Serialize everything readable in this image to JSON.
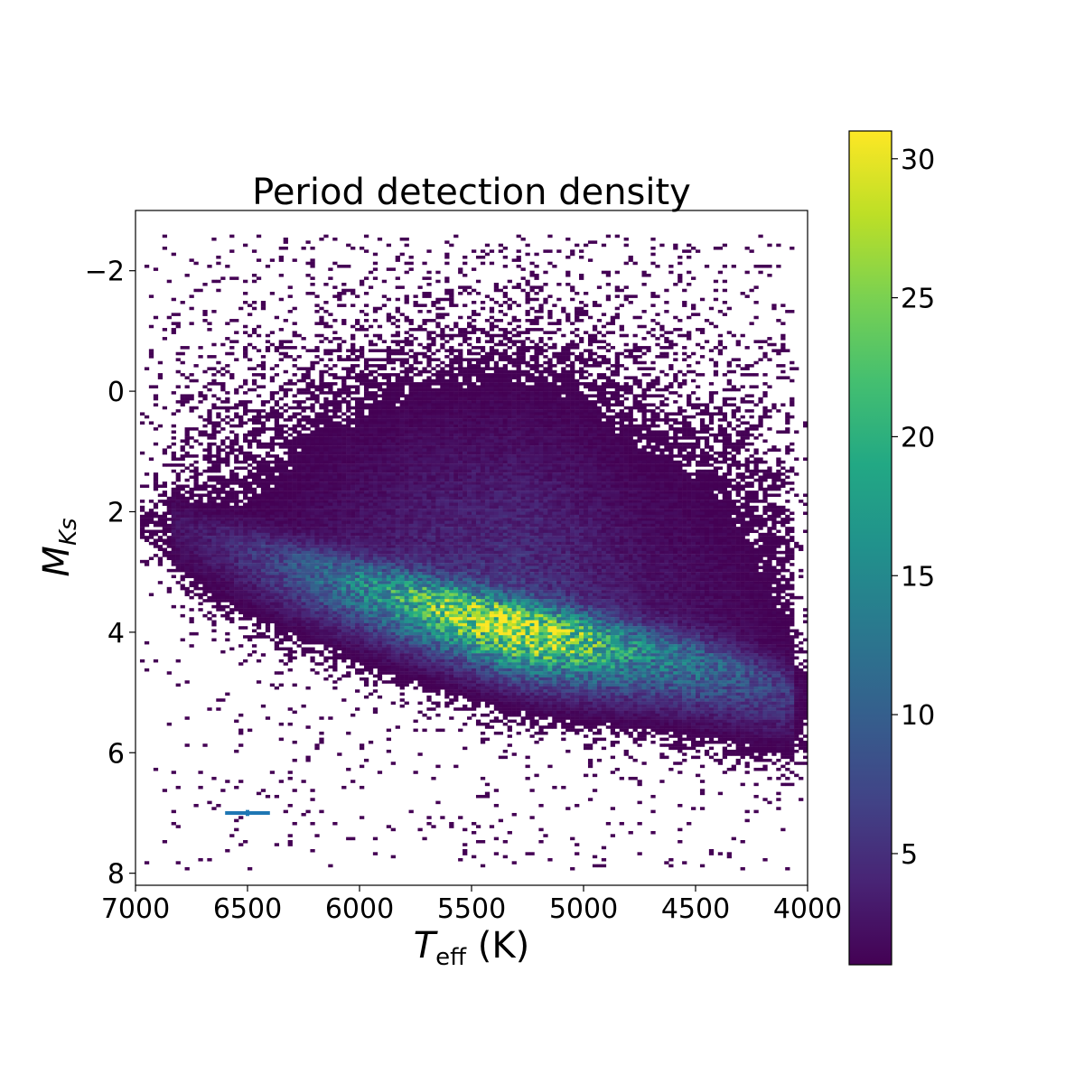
{
  "chart_data": {
    "type": "heatmap",
    "title": "Period detection density",
    "xlabel": {
      "main": "T",
      "sub": "eff",
      "suffix": " (K)"
    },
    "ylabel": {
      "main": "M",
      "sub": "Ks"
    },
    "xlim": [
      7000,
      4000
    ],
    "ylim": [
      8.2,
      -3.0
    ],
    "x_ticks": [
      7000,
      6500,
      6000,
      5500,
      5000,
      4500,
      4000
    ],
    "x_tick_labels": [
      "7000",
      "6500",
      "6000",
      "5500",
      "5000",
      "4500",
      "4000"
    ],
    "y_ticks": [
      -2,
      0,
      2,
      4,
      6,
      8
    ],
    "y_tick_labels": [
      "−2",
      "0",
      "2",
      "4",
      "6",
      "8"
    ],
    "colorbar": {
      "colormap": "viridis",
      "range": [
        1,
        31
      ],
      "ticks": [
        5,
        10,
        15,
        20,
        25,
        30
      ],
      "tick_labels": [
        "5",
        "10",
        "15",
        "20",
        "25",
        "30"
      ]
    },
    "ridge": {
      "teff": [
        6900,
        6700,
        6500,
        6300,
        6100,
        5900,
        5700,
        5500,
        5300,
        5100,
        4900,
        4700,
        4500,
        4300,
        4100,
        4000
      ],
      "mks": [
        2.0,
        2.35,
        2.6,
        2.85,
        3.05,
        3.25,
        3.45,
        3.65,
        3.85,
        4.0,
        4.15,
        4.3,
        4.45,
        4.65,
        4.9,
        5.0
      ],
      "peak_density": [
        2,
        3,
        5,
        8,
        12,
        16,
        22,
        26,
        30,
        26,
        20,
        14,
        12,
        9,
        6,
        4
      ]
    },
    "error_bar": {
      "x": 6500,
      "y": 7.0,
      "x_err": 100,
      "y_err": 0.05,
      "color": "#1f77b4"
    },
    "grid": false,
    "legend": "none"
  }
}
